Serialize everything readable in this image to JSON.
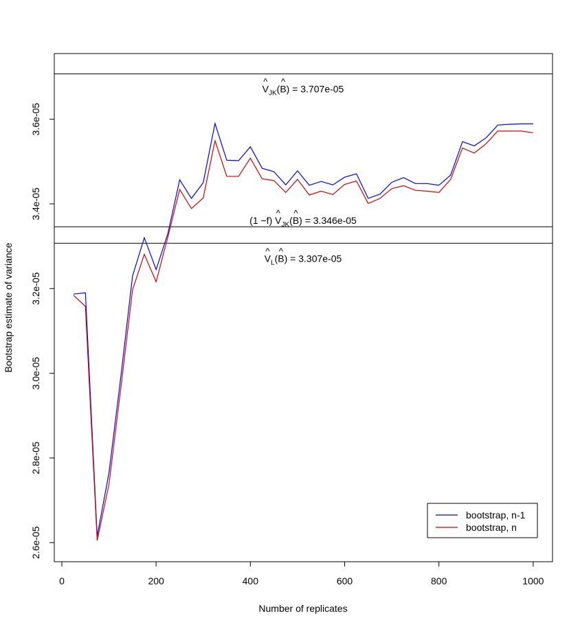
{
  "chart_data": {
    "type": "line",
    "title": "",
    "xlabel": "Number of replicates",
    "ylabel": "Bootstrap estimate of variance",
    "xlim": [
      -16,
      1041
    ],
    "ylim": [
      2.555e-05,
      3.755e-05
    ],
    "xticks": [
      0,
      200,
      400,
      600,
      800,
      1000
    ],
    "xtick_labels": [
      "0",
      "200",
      "400",
      "600",
      "800",
      "1000"
    ],
    "yticks": [
      2.6e-05,
      2.8e-05,
      3e-05,
      3.2e-05,
      3.4e-05,
      3.6e-05
    ],
    "ytick_labels": [
      "2.6e-05",
      "2.8e-05",
      "3.0e-05",
      "3.2e-05",
      "3.4e-05",
      "3.6e-05"
    ],
    "grid": false,
    "legend_position": "bottom-right",
    "x": [
      25,
      50,
      75,
      100,
      125,
      150,
      175,
      200,
      225,
      250,
      275,
      300,
      325,
      350,
      375,
      400,
      425,
      450,
      475,
      500,
      525,
      550,
      575,
      600,
      625,
      650,
      675,
      700,
      725,
      750,
      775,
      800,
      825,
      850,
      875,
      900,
      925,
      950,
      975,
      1000
    ],
    "series": [
      {
        "name": "bootstrap, n-1",
        "color": "#0000ff",
        "values": [
          3.187e-05,
          3.19e-05,
          2.615e-05,
          2.765e-05,
          2.99e-05,
          3.23e-05,
          3.32e-05,
          3.245e-05,
          3.33e-05,
          3.457e-05,
          3.413e-05,
          3.45e-05,
          3.59e-05,
          3.503e-05,
          3.502e-05,
          3.535e-05,
          3.484e-05,
          3.476e-05,
          3.445e-05,
          3.478e-05,
          3.444e-05,
          3.453e-05,
          3.445e-05,
          3.463e-05,
          3.471e-05,
          3.413e-05,
          3.423e-05,
          3.451e-05,
          3.462e-05,
          3.448e-05,
          3.448e-05,
          3.444e-05,
          3.468e-05,
          3.547e-05,
          3.537e-05,
          3.556e-05,
          3.586e-05,
          3.588e-05,
          3.589e-05,
          3.589e-05
        ]
      },
      {
        "name": "bootstrap, n",
        "color": "#dd0000",
        "values": [
          3.184e-05,
          3.158e-05,
          2.605e-05,
          2.738e-05,
          2.963e-05,
          3.197e-05,
          3.281e-05,
          3.216e-05,
          3.322e-05,
          3.434e-05,
          3.389e-05,
          3.414e-05,
          3.549e-05,
          3.465e-05,
          3.465e-05,
          3.508e-05,
          3.459e-05,
          3.455e-05,
          3.427e-05,
          3.458e-05,
          3.421e-05,
          3.43e-05,
          3.422e-05,
          3.446e-05,
          3.454e-05,
          3.401e-05,
          3.413e-05,
          3.436e-05,
          3.443e-05,
          3.432e-05,
          3.43e-05,
          3.427e-05,
          3.458e-05,
          3.532e-05,
          3.52e-05,
          3.542e-05,
          3.572e-05,
          3.572e-05,
          3.572e-05,
          3.568e-05
        ]
      }
    ],
    "reference_lines": [
      {
        "value": 3.707e-05,
        "prefix": "",
        "label_main": "V",
        "label_sub": "JK",
        "label_rest": "(B) = 3.707e-05",
        "label_position": "below"
      },
      {
        "value": 3.346e-05,
        "prefix": "(1 −f) ",
        "label_main": "V",
        "label_sub": "JK",
        "label_rest": "(B) = 3.346e-05",
        "label_position": "above"
      },
      {
        "value": 3.307e-05,
        "prefix": "",
        "label_main": "V",
        "label_sub": "L",
        "label_rest": "(B) = 3.307e-05",
        "label_position": "below"
      }
    ]
  }
}
